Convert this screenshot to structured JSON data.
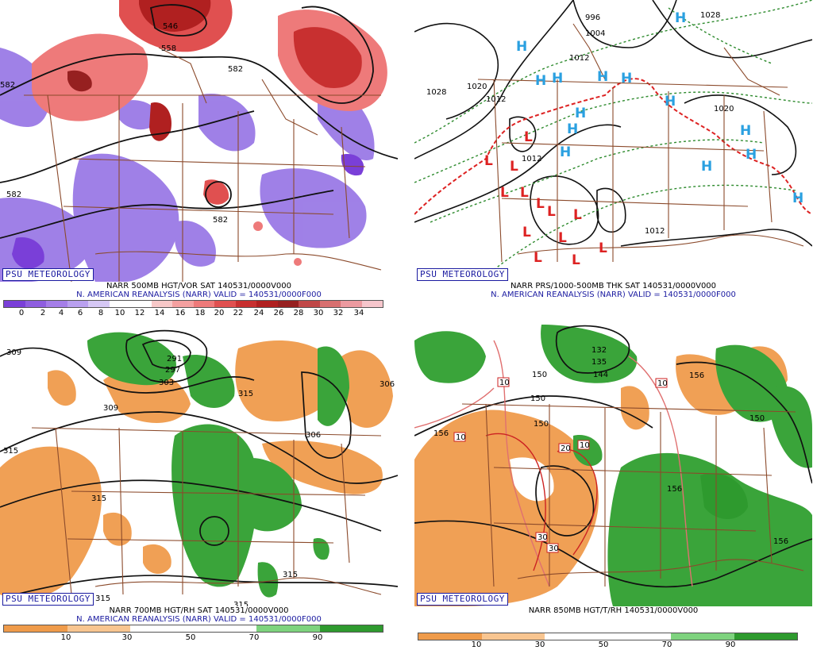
{
  "badge_text": "PSU METEOROLOGY",
  "colors": {
    "state_lines": "#8b4a2b",
    "contours": "#111111",
    "thickness": "#2e8b2e",
    "front": "#dd2222",
    "H": "#2aa0e0",
    "L": "#dd2222"
  },
  "panels": [
    {
      "id": "top-left",
      "line1": "NARR 500MB HGT/VOR SAT 140531/0000V000",
      "line2": "N. AMERICAN REANALYSIS (NARR) VALID = 140531/0000F000",
      "colorbar_ticks": [
        "0",
        "2",
        "4",
        "6",
        "8",
        "10",
        "12",
        "14",
        "16",
        "18",
        "20",
        "22",
        "24",
        "26",
        "28",
        "30",
        "32",
        "34"
      ],
      "colorbar_colors": [
        "#7a3fd8",
        "#8f5ee0",
        "#a57ee8",
        "#b9a0ef",
        "#d6c8f5",
        "#ffffff",
        "#ffffff",
        "#f7c8c8",
        "#f4a0a0",
        "#ee7a7a",
        "#e05050",
        "#c83030",
        "#b02020",
        "#962020",
        "#c04848",
        "#d87070",
        "#ec9aa0",
        "#f6c6cc"
      ],
      "contour_labels": [
        "546",
        "558",
        "582",
        "582",
        "582",
        "582"
      ]
    },
    {
      "id": "top-right",
      "line1": "NARR PRS/1000-500MB THK SAT 140531/0000V000",
      "line2": "N. AMERICAN REANALYSIS (NARR) VALID = 140531/0000F000",
      "contour_labels": [
        "1028",
        "1020",
        "1012",
        "1012",
        "1004",
        "996",
        "1012",
        "1028",
        "1020",
        "1012"
      ],
      "highs": [
        "H",
        "H",
        "H",
        "H",
        "H",
        "H",
        "H",
        "H",
        "H",
        "H",
        "H",
        "H",
        "H",
        "H"
      ],
      "lows": [
        "L",
        "L",
        "L",
        "L",
        "L",
        "L",
        "L",
        "L",
        "L",
        "L",
        "L",
        "L",
        "L"
      ]
    },
    {
      "id": "bottom-left",
      "line1": "NARR 700MB HGT/RH SAT 140531/0000V000",
      "line2": "N. AMERICAN REANALYSIS (NARR) VALID = 140531/0000F000",
      "colorbar_ticks": [
        "10",
        "30",
        "50",
        "70",
        "90"
      ],
      "colorbar_colors": [
        "#ef9b4a",
        "#f8c590",
        "#ffffff",
        "#ffffff",
        "#7ed37e",
        "#2e9a2e"
      ],
      "contour_labels": [
        "309",
        "291",
        "297",
        "303",
        "309",
        "315",
        "306",
        "315",
        "315",
        "306",
        "315",
        "315",
        "315"
      ]
    },
    {
      "id": "bottom-right",
      "line1": "NARR 850MB HGT/T/RH 140531/0000V000",
      "colorbar_ticks": [
        "10",
        "30",
        "50",
        "70",
        "90"
      ],
      "colorbar_colors": [
        "#ef9b4a",
        "#f8c590",
        "#ffffff",
        "#ffffff",
        "#7ed37e",
        "#2e9a2e"
      ],
      "contour_labels": [
        "132",
        "135",
        "144",
        "150",
        "150",
        "156",
        "150",
        "156",
        "150",
        "156",
        "156"
      ],
      "temp_labels": [
        "10",
        "10",
        "10",
        "20",
        "10",
        "30",
        "30"
      ]
    }
  ]
}
